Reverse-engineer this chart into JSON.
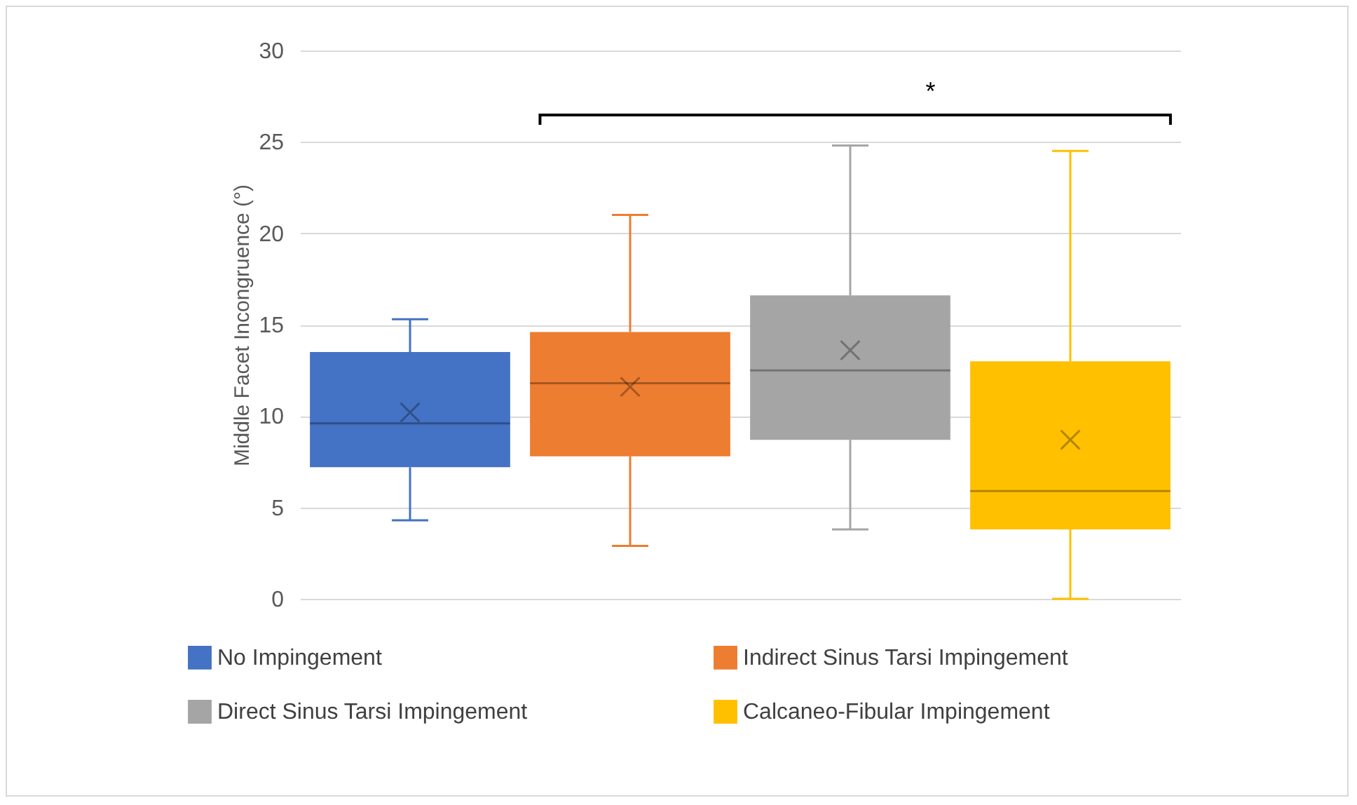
{
  "chart_data": {
    "type": "box",
    "ylabel": "Middle Facet Incongruence (°)",
    "categories": [
      null,
      null,
      null,
      null
    ],
    "series": [
      {
        "name": "No Impingement",
        "color": "#4472c4",
        "boxes": [
          {
            "low": 4.3,
            "q1": 7.2,
            "median": 9.6,
            "q3": 13.5,
            "high": 15.3,
            "mean": 10.2
          },
          null,
          null,
          null
        ]
      },
      {
        "name": "Indirect Sinus Tarsi Impingement",
        "color": "#ed7d31",
        "boxes": [
          null,
          {
            "low": 2.9,
            "q1": 7.8,
            "median": 11.8,
            "q3": 14.6,
            "high": 21.0,
            "mean": 11.6
          },
          null,
          null
        ]
      },
      {
        "name": "Direct Sinus Tarsi Impingement",
        "color": "#a5a5a5",
        "boxes": [
          null,
          null,
          {
            "low": 3.8,
            "q1": 8.7,
            "median": 12.5,
            "q3": 16.6,
            "high": 24.8,
            "mean": 13.6
          },
          null
        ]
      },
      {
        "name": "Calcaneo-Fibular Impingement",
        "color": "#ffc000",
        "boxes": [
          null,
          null,
          null,
          {
            "low": 0,
            "q1": 3.8,
            "median": 5.9,
            "q3": 13.0,
            "high": 24.5,
            "mean": 8.7
          }
        ]
      }
    ],
    "ylim": [
      0,
      30
    ],
    "yticks": [
      0,
      5,
      10,
      15,
      20,
      25,
      30
    ],
    "grid": "y",
    "legend": "bottom",
    "tick_labels": "y",
    "annotations": [
      "*"
    ]
  }
}
